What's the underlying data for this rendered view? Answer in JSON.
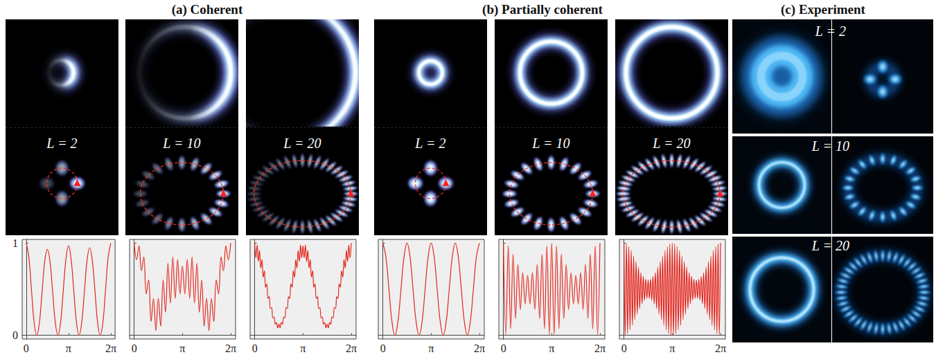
{
  "figure": {
    "panels": [
      {
        "title": "(a) Coherent",
        "images": [
          {
            "label": "L = 2",
            "L": 2
          },
          {
            "label": "L = 10",
            "L": 10
          },
          {
            "label": "L = 20",
            "L": 20
          }
        ]
      },
      {
        "title": "(b) Partially coherent",
        "images": [
          {
            "label": "L = 2",
            "L": 2
          },
          {
            "label": "L = 10",
            "L": 10
          },
          {
            "label": "L = 20",
            "L": 20
          }
        ]
      },
      {
        "title": "(c) Experiment",
        "images": [
          {
            "label": "L = 2",
            "L": 2
          },
          {
            "label": "L = 10",
            "L": 10
          },
          {
            "label": "L = 20",
            "L": 20
          }
        ]
      }
    ]
  },
  "chart_data": [
    {
      "type": "line",
      "color": "#e3241c",
      "grid": false,
      "xlim": [
        -0.3,
        6.6
      ],
      "ylim": [
        -0.04,
        1.04
      ],
      "xticks": [
        0,
        {
          "value": 3.1416,
          "label": "π"
        },
        {
          "value": 6.2832,
          "label": "2π"
        }
      ],
      "yticks": [
        0,
        1
      ],
      "x": [
        0,
        0.1963,
        0.3927,
        0.589,
        0.7854,
        0.9817,
        1.1781,
        1.3744,
        1.5708,
        1.7671,
        1.9635,
        2.1598,
        2.3562,
        2.5525,
        2.7489,
        2.9452,
        3.1416,
        3.3379,
        3.5343,
        3.7306,
        3.927,
        4.1233,
        4.3197,
        4.516,
        4.7124,
        4.9087,
        5.1051,
        5.3014,
        5.4978,
        5.6941,
        5.8905,
        6.0868,
        6.2832
      ],
      "values": [
        1.0,
        0.85,
        0.49,
        0.14,
        0.0,
        0.14,
        0.47,
        0.8,
        0.93,
        0.8,
        0.47,
        0.14,
        0.0,
        0.14,
        0.48,
        0.82,
        0.97,
        0.82,
        0.48,
        0.14,
        0.0,
        0.14,
        0.47,
        0.81,
        0.95,
        0.81,
        0.48,
        0.14,
        0.0,
        0.14,
        0.49,
        0.85,
        1.0
      ]
    },
    {
      "type": "line",
      "color": "#e3241c",
      "grid": false,
      "tick_labels": "x",
      "xlim": [
        -0.3,
        6.6
      ],
      "ylim": [
        -0.04,
        1.04
      ],
      "xticks": [
        0,
        {
          "value": 3.1416,
          "label": "π"
        },
        {
          "value": 6.2832,
          "label": "2π"
        }
      ],
      "yticks": [
        0,
        1
      ],
      "x": [
        0,
        0.1571,
        0.3142,
        0.4712,
        0.6283,
        0.7854,
        0.9425,
        1.0996,
        1.2566,
        1.4137,
        1.5708,
        1.7279,
        1.885,
        2.042,
        2.1991,
        2.3562,
        2.5133,
        2.6704,
        2.8274,
        2.9845,
        3.1416,
        3.2987,
        3.4558,
        3.6128,
        3.7699,
        3.927,
        4.0841,
        4.2412,
        4.3982,
        4.5553,
        4.7124,
        4.8695,
        5.0265,
        5.1836,
        5.3407,
        5.4978,
        5.6549,
        5.8119,
        5.969,
        6.1261,
        6.2832
      ],
      "values": [
        1.0,
        0.82,
        0.97,
        0.7,
        0.85,
        0.45,
        0.6,
        0.15,
        0.4,
        0.05,
        0.4,
        0.1,
        0.6,
        0.25,
        0.78,
        0.35,
        0.85,
        0.4,
        0.82,
        0.45,
        0.75,
        0.45,
        0.82,
        0.4,
        0.85,
        0.35,
        0.78,
        0.25,
        0.6,
        0.1,
        0.4,
        0.05,
        0.4,
        0.15,
        0.6,
        0.45,
        0.85,
        0.7,
        0.97,
        0.82,
        1.0
      ]
    },
    {
      "type": "line",
      "color": "#e3241c",
      "grid": false,
      "tick_labels": "x",
      "xlim": [
        -0.3,
        6.6
      ],
      "ylim": [
        -0.04,
        1.04
      ],
      "xticks": [
        0,
        {
          "value": 3.1416,
          "label": "π"
        },
        {
          "value": 6.2832,
          "label": "2π"
        }
      ],
      "yticks": [
        0,
        1
      ],
      "x": [
        0,
        0.0785,
        0.1571,
        0.2356,
        0.3142,
        0.3927,
        0.4712,
        0.5498,
        0.6283,
        0.7069,
        0.7854,
        0.8639,
        0.9425,
        1.021,
        1.0996,
        1.1781,
        1.2566,
        1.3352,
        1.4137,
        1.4923,
        1.5708,
        1.6493,
        1.7279,
        1.8064,
        1.885,
        1.9635,
        2.042,
        2.1206,
        2.1991,
        2.2777,
        2.3562,
        2.4347,
        2.5133,
        2.5918,
        2.6704,
        2.7489,
        2.8274,
        2.906,
        2.9845,
        3.0631,
        3.1416,
        3.2201,
        3.2987,
        3.3772,
        3.4558,
        3.5343,
        3.6128,
        3.6914,
        3.7699,
        3.8485,
        3.927,
        4.0055,
        4.0841,
        4.1626,
        4.2412,
        4.3197,
        4.3982,
        4.4768,
        4.5553,
        4.6339,
        4.7124,
        4.7909,
        4.8695,
        4.948,
        5.0265,
        5.1051,
        5.1836,
        5.2622,
        5.3407,
        5.4192,
        5.4978,
        5.5763,
        5.6549,
        5.7334,
        5.8119,
        5.8905,
        5.969,
        6.0476,
        6.1261,
        6.2046,
        6.2832
      ],
      "values": [
        1.0,
        0.84,
        0.98,
        0.8,
        0.92,
        0.73,
        0.82,
        0.63,
        0.7,
        0.52,
        0.56,
        0.4,
        0.42,
        0.29,
        0.3,
        0.19,
        0.2,
        0.12,
        0.14,
        0.08,
        0.12,
        0.08,
        0.14,
        0.12,
        0.2,
        0.19,
        0.3,
        0.29,
        0.42,
        0.4,
        0.56,
        0.52,
        0.7,
        0.63,
        0.82,
        0.73,
        0.92,
        0.8,
        0.98,
        0.84,
        0.97,
        0.84,
        0.98,
        0.8,
        0.92,
        0.73,
        0.82,
        0.63,
        0.7,
        0.52,
        0.56,
        0.4,
        0.42,
        0.29,
        0.3,
        0.19,
        0.2,
        0.12,
        0.14,
        0.08,
        0.12,
        0.08,
        0.14,
        0.12,
        0.2,
        0.19,
        0.3,
        0.29,
        0.42,
        0.4,
        0.56,
        0.52,
        0.7,
        0.63,
        0.82,
        0.73,
        0.92,
        0.8,
        0.98,
        0.84,
        1.0
      ]
    },
    {
      "type": "line",
      "color": "#e3241c",
      "grid": false,
      "tick_labels": "x",
      "xlim": [
        -0.3,
        6.6
      ],
      "ylim": [
        -0.04,
        1.04
      ],
      "xticks": [
        0,
        {
          "value": 3.1416,
          "label": "π"
        },
        {
          "value": 6.2832,
          "label": "2π"
        }
      ],
      "yticks": [
        0,
        1
      ],
      "x": [
        0,
        0.1963,
        0.3927,
        0.589,
        0.7854,
        0.9817,
        1.1781,
        1.3744,
        1.5708,
        1.7671,
        1.9635,
        2.1598,
        2.3562,
        2.5525,
        2.7489,
        2.9452,
        3.1416,
        3.3379,
        3.5343,
        3.7306,
        3.927,
        4.1233,
        4.3197,
        4.516,
        4.7124,
        4.9087,
        5.1051,
        5.3014,
        5.4978,
        5.6941,
        5.8905,
        6.0868,
        6.2832
      ],
      "values": [
        1.0,
        0.85,
        0.5,
        0.15,
        0.0,
        0.15,
        0.5,
        0.85,
        1.0,
        0.85,
        0.5,
        0.15,
        0.0,
        0.15,
        0.5,
        0.85,
        1.0,
        0.85,
        0.5,
        0.15,
        0.0,
        0.15,
        0.5,
        0.85,
        1.0,
        0.85,
        0.5,
        0.15,
        0.0,
        0.15,
        0.5,
        0.85,
        1.0
      ]
    },
    {
      "type": "line",
      "color": "#e3241c",
      "grid": false,
      "tick_labels": "x",
      "xlim": [
        -0.3,
        6.6
      ],
      "ylim": [
        -0.04,
        1.04
      ],
      "xticks": [
        0,
        {
          "value": 3.1416,
          "label": "π"
        },
        {
          "value": 6.2832,
          "label": "2π"
        }
      ],
      "yticks": [
        0,
        1
      ],
      "x": [
        0,
        0.1571,
        0.3142,
        0.4712,
        0.6283,
        0.7854,
        0.9425,
        1.0996,
        1.2566,
        1.4137,
        1.5708,
        1.7279,
        1.885,
        2.042,
        2.1991,
        2.3562,
        2.5133,
        2.6704,
        2.8274,
        2.9845,
        3.1416,
        3.2987,
        3.4558,
        3.6128,
        3.7699,
        3.927,
        4.0841,
        4.2412,
        4.3982,
        4.5553,
        4.7124,
        4.8695,
        5.0265,
        5.1836,
        5.3407,
        5.4978,
        5.6549,
        5.8119,
        5.969,
        6.1261,
        6.2832
      ],
      "values": [
        1.0,
        0.01,
        0.97,
        0.07,
        0.88,
        0.18,
        0.77,
        0.28,
        0.68,
        0.34,
        0.65,
        0.34,
        0.68,
        0.28,
        0.77,
        0.18,
        0.88,
        0.07,
        0.97,
        0.01,
        1.0,
        0.01,
        0.97,
        0.07,
        0.88,
        0.18,
        0.77,
        0.28,
        0.68,
        0.34,
        0.65,
        0.34,
        0.68,
        0.28,
        0.77,
        0.18,
        0.88,
        0.07,
        0.97,
        0.01,
        1.0
      ]
    },
    {
      "type": "line",
      "color": "#e3241c",
      "grid": false,
      "tick_labels": "x",
      "xlim": [
        -0.3,
        6.6
      ],
      "ylim": [
        -0.04,
        1.04
      ],
      "xticks": [
        0,
        {
          "value": 3.1416,
          "label": "π"
        },
        {
          "value": 6.2832,
          "label": "2π"
        }
      ],
      "yticks": [
        0,
        1
      ],
      "x": [
        0,
        0.0785,
        0.1571,
        0.2356,
        0.3142,
        0.3927,
        0.4712,
        0.5498,
        0.6283,
        0.7069,
        0.7854,
        0.8639,
        0.9425,
        1.021,
        1.0996,
        1.1781,
        1.2566,
        1.3352,
        1.4137,
        1.4923,
        1.5708,
        1.6493,
        1.7279,
        1.8064,
        1.885,
        1.9635,
        2.042,
        2.1206,
        2.1991,
        2.2777,
        2.3562,
        2.4347,
        2.5133,
        2.5918,
        2.6704,
        2.7489,
        2.8274,
        2.906,
        2.9845,
        3.0631,
        3.1416,
        3.2201,
        3.2987,
        3.3772,
        3.4558,
        3.5343,
        3.6128,
        3.6914,
        3.7699,
        3.8485,
        3.927,
        4.0055,
        4.0841,
        4.1626,
        4.2412,
        4.3197,
        4.3982,
        4.4768,
        4.5553,
        4.6339,
        4.7124,
        4.7909,
        4.8695,
        4.948,
        5.0265,
        5.1051,
        5.1836,
        5.2622,
        5.3407,
        5.4192,
        5.4978,
        5.5763,
        5.6549,
        5.7334,
        5.8119,
        5.8905,
        5.969,
        6.0476,
        6.1261,
        6.2046,
        6.2832
      ],
      "values": [
        1.0,
        0.0,
        0.99,
        0.02,
        0.96,
        0.06,
        0.92,
        0.11,
        0.86,
        0.17,
        0.8,
        0.23,
        0.74,
        0.29,
        0.68,
        0.34,
        0.64,
        0.38,
        0.61,
        0.4,
        0.6,
        0.4,
        0.61,
        0.38,
        0.64,
        0.34,
        0.68,
        0.29,
        0.74,
        0.23,
        0.8,
        0.17,
        0.86,
        0.11,
        0.92,
        0.06,
        0.96,
        0.02,
        0.99,
        0.0,
        1.0,
        0.0,
        0.99,
        0.02,
        0.96,
        0.06,
        0.92,
        0.11,
        0.86,
        0.17,
        0.8,
        0.23,
        0.74,
        0.29,
        0.68,
        0.34,
        0.64,
        0.38,
        0.61,
        0.4,
        0.6,
        0.4,
        0.61,
        0.38,
        0.64,
        0.34,
        0.68,
        0.29,
        0.74,
        0.23,
        0.8,
        0.17,
        0.86,
        0.11,
        0.92,
        0.06,
        0.96,
        0.02,
        0.99,
        0.0,
        1.0
      ]
    }
  ]
}
